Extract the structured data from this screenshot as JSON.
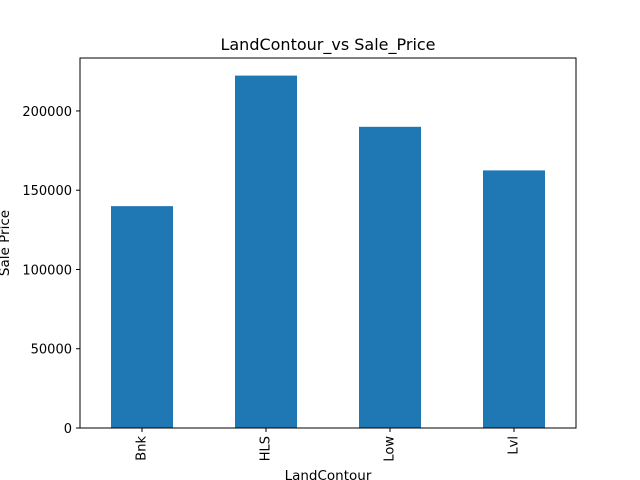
{
  "chart_data": {
    "type": "bar",
    "title": "LandContour_vs Sale_Price",
    "xlabel": "LandContour",
    "ylabel": "Sale Price",
    "categories": [
      "Bnk",
      "HLS",
      "Low",
      "Lvl"
    ],
    "values": [
      139950,
      222300,
      190000,
      162500
    ],
    "ylim": [
      0,
      233400
    ],
    "yticks": [
      0,
      50000,
      100000,
      150000,
      200000
    ],
    "ytick_labels": [
      "0",
      "50000",
      "100000",
      "150000",
      "200000"
    ],
    "bar_color": "#1f77b4",
    "grid": false,
    "legend": false
  }
}
